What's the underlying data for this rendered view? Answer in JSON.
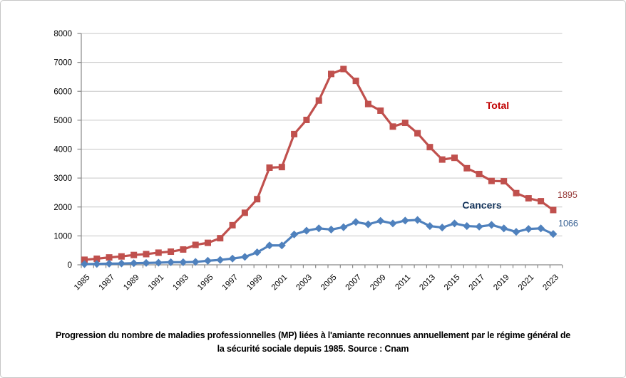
{
  "window": {
    "background": "#ffffff",
    "border_color": "#c6c6c6"
  },
  "chart_data": {
    "type": "line",
    "title": "",
    "caption_lines": [
      "Progression du nombre de maladies professionnelles (MP) liées à l'amiante reconnues annuellement par le régime général de",
      "la sécurité sociale depuis 1985. Source : Cnam"
    ],
    "xlabel": "",
    "ylabel": "",
    "ylim": [
      0,
      8000
    ],
    "y_ticks": [
      0,
      1000,
      2000,
      3000,
      4000,
      5000,
      6000,
      7000,
      8000
    ],
    "grid": "horizontal",
    "gridline_color": "#c6c6c6",
    "axis_color": "#898989",
    "tick_label_color": "#000000",
    "legend_position": "inline-annotations",
    "x": [
      1985,
      1986,
      1987,
      1988,
      1989,
      1990,
      1991,
      1992,
      1993,
      1994,
      1995,
      1996,
      1997,
      1998,
      1999,
      2000,
      2001,
      2002,
      2003,
      2004,
      2005,
      2006,
      2007,
      2008,
      2009,
      2010,
      2011,
      2012,
      2013,
      2014,
      2015,
      2016,
      2017,
      2018,
      2019,
      2020,
      2021,
      2022,
      2023
    ],
    "x_tick_labels": [
      "1985",
      "1987",
      "1989",
      "1991",
      "1993",
      "1995",
      "1997",
      "1999",
      "2001",
      "2003",
      "2005",
      "2007",
      "2009",
      "2011",
      "2013",
      "2015",
      "2017",
      "2019",
      "2021",
      "2023"
    ],
    "series": [
      {
        "name": "Total",
        "color": "#c0504d",
        "marker": "square",
        "name_label_color": "#c00000",
        "end_label": "1895",
        "end_label_color": "#953735",
        "values": [
          175,
          210,
          255,
          290,
          340,
          370,
          420,
          455,
          530,
          690,
          760,
          920,
          1370,
          1800,
          2270,
          3360,
          3380,
          4520,
          5010,
          5680,
          6600,
          6770,
          6360,
          5560,
          5330,
          4780,
          4910,
          4550,
          4070,
          3640,
          3700,
          3340,
          3140,
          2900,
          2890,
          2480,
          2300,
          2200,
          1895
        ]
      },
      {
        "name": "Cancers",
        "color": "#4f81bd",
        "marker": "diamond",
        "name_label_color": "#17375e",
        "end_label": "1066",
        "end_label_color": "#376092",
        "values": [
          25,
          30,
          40,
          45,
          55,
          65,
          75,
          90,
          90,
          100,
          140,
          170,
          215,
          275,
          430,
          670,
          670,
          1050,
          1180,
          1260,
          1220,
          1300,
          1480,
          1400,
          1520,
          1430,
          1530,
          1550,
          1340,
          1290,
          1430,
          1340,
          1320,
          1380,
          1260,
          1140,
          1240,
          1260,
          1066
        ]
      }
    ]
  }
}
